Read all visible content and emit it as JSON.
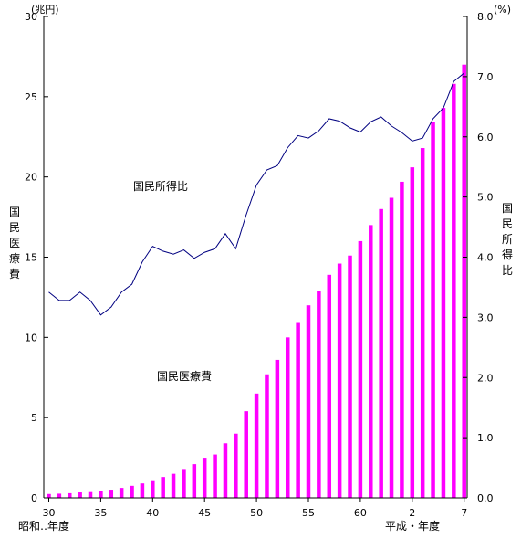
{
  "chart_data": {
    "type": "bar+line",
    "left_axis": {
      "unit": "(兆円)",
      "label": "国民医療費",
      "range": [
        0,
        30
      ],
      "ticks": [
        "0",
        "5",
        "10",
        "15",
        "20",
        "25",
        "30"
      ]
    },
    "right_axis": {
      "unit": "(%)",
      "label": "国民所得比",
      "range": [
        0,
        8
      ],
      "ticks": [
        "0.0",
        "1.0",
        "2.0",
        "3.0",
        "4.0",
        "5.0",
        "6.0",
        "7.0",
        "8.0"
      ]
    },
    "x_tick_labels": [
      {
        "index": 0,
        "label": "30"
      },
      {
        "index": 5,
        "label": "35"
      },
      {
        "index": 10,
        "label": "40"
      },
      {
        "index": 15,
        "label": "45"
      },
      {
        "index": 20,
        "label": "50"
      },
      {
        "index": 25,
        "label": "55"
      },
      {
        "index": 30,
        "label": "60"
      },
      {
        "index": 35,
        "label": "2"
      },
      {
        "index": 40,
        "label": "7"
      }
    ],
    "x_era_labels": {
      "showa": "昭和‥年度",
      "heisei": "平成・年度"
    },
    "series": [
      {
        "name": "国民医療費",
        "kind": "bar",
        "color": "#ff00ff",
        "axis": "left",
        "values": [
          0.24,
          0.26,
          0.29,
          0.34,
          0.36,
          0.41,
          0.51,
          0.62,
          0.75,
          0.9,
          1.1,
          1.3,
          1.5,
          1.8,
          2.1,
          2.5,
          2.7,
          3.4,
          4.0,
          5.4,
          6.5,
          7.7,
          8.6,
          10.0,
          10.9,
          12.0,
          12.9,
          13.9,
          14.6,
          15.1,
          16.0,
          17.0,
          18.0,
          18.7,
          19.7,
          20.6,
          21.8,
          23.4,
          24.3,
          25.8,
          27.0
        ]
      },
      {
        "name": "国民所得比",
        "kind": "line",
        "color": "#000080",
        "axis": "right",
        "values": [
          3.42,
          3.28,
          3.28,
          3.42,
          3.28,
          3.04,
          3.17,
          3.42,
          3.55,
          3.92,
          4.18,
          4.1,
          4.05,
          4.12,
          3.98,
          4.08,
          4.14,
          4.39,
          4.14,
          4.7,
          5.2,
          5.45,
          5.52,
          5.82,
          6.02,
          5.98,
          6.1,
          6.3,
          6.26,
          6.15,
          6.08,
          6.25,
          6.33,
          6.18,
          6.07,
          5.93,
          5.98,
          6.3,
          6.48,
          6.92,
          7.06
        ]
      }
    ],
    "annotations": [
      {
        "text": "国民所得比",
        "series": "国民所得比"
      },
      {
        "text": "国民医療費",
        "series": "国民医療費"
      }
    ]
  }
}
